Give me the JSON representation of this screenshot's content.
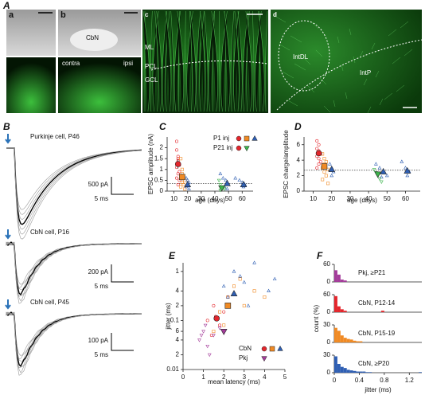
{
  "images": {
    "label": "A",
    "panels": [
      {
        "label": "a"
      },
      {
        "label": "b",
        "annotations": [
          "CbN",
          "contra",
          "ipsi"
        ]
      },
      {
        "label": "c",
        "annotations": [
          "ML",
          "PCL",
          "GCL"
        ]
      },
      {
        "label": "d",
        "annotations": [
          "IntDL",
          "IntP"
        ]
      }
    ]
  },
  "traces": {
    "label": "B",
    "cells": [
      {
        "title": "Purkinje cell, P46",
        "scale_y": "500 pA",
        "scale_x": "5 ms"
      },
      {
        "title": "CbN cell, P16",
        "scale_y": "200 pA",
        "scale_x": "5 ms"
      },
      {
        "title": "CbN cell, P45",
        "scale_y": "100 pA",
        "scale_x": "5 ms"
      }
    ]
  },
  "chart_data": [
    {
      "type": "scatter",
      "panel_label": "C",
      "xlabel": "age (days)",
      "ylabel": "EPSC amplitude (nA)",
      "xlim": [
        5,
        68
      ],
      "xticks": [
        10,
        20,
        30,
        40,
        50,
        60
      ],
      "ylim": [
        0,
        2.5
      ],
      "yticks": [
        0,
        0.5,
        1,
        1.5,
        2
      ],
      "hline": 0.35,
      "legend": [
        {
          "label": "P1 inj",
          "markers": [
            {
              "color": "#e4262c",
              "marker": "circle"
            },
            {
              "color": "#f08a24",
              "marker": "square"
            },
            {
              "color": "#2f5fb3",
              "marker": "triangle"
            }
          ]
        },
        {
          "label": "P21 inj",
          "markers": [
            {
              "color": "#e4262c",
              "marker": "circle"
            },
            {
              "color": "#3cb44b",
              "marker": "triangle-down"
            }
          ]
        }
      ],
      "series": [
        {
          "color": "#e4262c",
          "marker": "circle",
          "filled": false,
          "x": [
            12,
            12,
            13,
            13,
            13,
            14,
            12,
            14,
            13,
            12,
            14,
            13
          ],
          "values": [
            2.3,
            1.9,
            1.6,
            1.5,
            1.4,
            1.2,
            1.1,
            0.9,
            0.8,
            0.6,
            0.5,
            0.3
          ]
        },
        {
          "color": "#f08a24",
          "marker": "square",
          "filled": false,
          "x": [
            15,
            16,
            16,
            17,
            15,
            18,
            16,
            17,
            15,
            18
          ],
          "values": [
            1.5,
            1.0,
            0.8,
            0.7,
            0.6,
            0.5,
            0.4,
            0.3,
            0.2,
            0.1
          ]
        },
        {
          "color": "#2f5fb3",
          "marker": "triangle",
          "filled": false,
          "x": [
            19,
            20,
            21,
            20,
            19,
            21,
            44,
            46,
            48,
            50,
            47,
            49,
            55,
            58,
            60,
            62,
            61
          ],
          "values": [
            0.6,
            0.5,
            0.4,
            0.3,
            0.2,
            0.1,
            0.8,
            0.6,
            0.5,
            0.3,
            0.2,
            0.1,
            0.6,
            0.5,
            0.4,
            0.3,
            0.2
          ]
        },
        {
          "color": "#3cb44b",
          "marker": "triangle-down",
          "filled": false,
          "x": [
            43,
            44,
            45,
            46,
            47,
            44
          ],
          "values": [
            0.5,
            0.3,
            0.2,
            0.15,
            0.1,
            0.05
          ]
        },
        {
          "color": "#e4262c",
          "marker": "circle",
          "filled": true,
          "x": [
            13
          ],
          "values": [
            1.25
          ],
          "errors": [
            0.2
          ]
        },
        {
          "color": "#f08a24",
          "marker": "square",
          "filled": true,
          "x": [
            16
          ],
          "values": [
            0.65
          ],
          "errors": [
            0.15
          ]
        },
        {
          "color": "#2f5fb3",
          "marker": "triangle",
          "filled": true,
          "x": [
            20,
            49,
            61
          ],
          "values": [
            0.3,
            0.35,
            0.3
          ],
          "errors": [
            0.05,
            0.08,
            0.06
          ]
        },
        {
          "color": "#3cb44b",
          "marker": "triangle-down",
          "filled": true,
          "x": [
            45
          ],
          "values": [
            0.15
          ],
          "errors": [
            0.04
          ]
        }
      ]
    },
    {
      "type": "scatter",
      "panel_label": "D",
      "xlabel": "age (days)",
      "ylabel": "EPSC charge/amplitude",
      "xlim": [
        5,
        68
      ],
      "xticks": [
        10,
        20,
        30,
        40,
        50,
        60
      ],
      "ylim": [
        0,
        7
      ],
      "yticks": [
        0,
        2,
        4,
        6
      ],
      "hline": 2.7,
      "series": [
        {
          "color": "#e4262c",
          "marker": "circle",
          "filled": false,
          "x": [
            12,
            13,
            12,
            13,
            14,
            12,
            13,
            14,
            13,
            12
          ],
          "values": [
            6.5,
            6.0,
            5.5,
            5.2,
            4.8,
            4.5,
            4.2,
            3.8,
            3.5,
            3.0
          ]
        },
        {
          "color": "#f08a24",
          "marker": "square",
          "filled": false,
          "x": [
            15,
            16,
            17,
            16,
            15,
            18,
            16,
            17,
            15,
            18
          ],
          "values": [
            4.8,
            4.2,
            3.8,
            3.5,
            3.0,
            2.8,
            2.5,
            2.0,
            1.5,
            1.0
          ]
        },
        {
          "color": "#2f5fb3",
          "marker": "triangle",
          "filled": false,
          "x": [
            19,
            20,
            21,
            20,
            44,
            46,
            48,
            50,
            47,
            58,
            60,
            62,
            61
          ],
          "values": [
            3.5,
            3.0,
            2.5,
            2.0,
            3.5,
            3.0,
            2.5,
            2.0,
            1.8,
            3.8,
            3.0,
            2.5,
            2.0
          ]
        },
        {
          "color": "#3cb44b",
          "marker": "triangle-down",
          "filled": false,
          "x": [
            43,
            44,
            45,
            46,
            47
          ],
          "values": [
            2.8,
            2.4,
            2.0,
            1.6,
            1.2
          ]
        },
        {
          "color": "#e4262c",
          "marker": "circle",
          "filled": true,
          "x": [
            13
          ],
          "values": [
            4.9
          ],
          "errors": [
            0.3
          ]
        },
        {
          "color": "#f08a24",
          "marker": "square",
          "filled": true,
          "x": [
            16
          ],
          "values": [
            3.2
          ],
          "errors": [
            0.3
          ]
        },
        {
          "color": "#2f5fb3",
          "marker": "triangle",
          "filled": true,
          "x": [
            20,
            48,
            61
          ],
          "values": [
            2.8,
            2.5,
            2.6
          ],
          "errors": [
            0.2,
            0.25,
            0.25
          ]
        },
        {
          "color": "#3cb44b",
          "marker": "triangle-down",
          "filled": true,
          "x": [
            45
          ],
          "values": [
            2.2
          ],
          "errors": [
            0.2
          ]
        }
      ]
    },
    {
      "type": "scatter",
      "panel_label": "E",
      "xlabel": "mean latency (ms)",
      "ylabel": "jitter (ms)",
      "log_y": true,
      "xlim": [
        0,
        5
      ],
      "xticks": [
        0,
        1,
        2,
        3,
        4,
        5
      ],
      "ylim": [
        0.01,
        1.5
      ],
      "yticks": [
        0.01,
        {
          "value": 0.02,
          "label": "2"
        },
        {
          "value": 0.04,
          "label": "4"
        },
        {
          "value": 0.06,
          "label": "6"
        },
        0.1,
        {
          "value": 0.2,
          "label": "2"
        },
        {
          "value": 0.4,
          "label": "4"
        },
        1
      ],
      "legend": [
        {
          "label": "CbN",
          "markers": [
            {
              "color": "#e4262c",
              "marker": "circle"
            },
            {
              "color": "#f08a24",
              "marker": "square"
            },
            {
              "color": "#2f5fb3",
              "marker": "triangle"
            }
          ]
        },
        {
          "label": "Pkj",
          "markers": [
            {
              "color": "#a43c9a",
              "marker": "triangle-down"
            }
          ]
        }
      ],
      "series": [
        {
          "color": "#e4262c",
          "marker": "circle",
          "filled": false,
          "x": [
            1.2,
            1.5,
            1.8,
            2.0,
            1.4,
            2.2,
            1.6
          ],
          "values": [
            0.1,
            0.2,
            0.08,
            0.15,
            0.05,
            0.3,
            0.12
          ]
        },
        {
          "color": "#f08a24",
          "marker": "square",
          "filled": false,
          "x": [
            1.8,
            2.2,
            2.5,
            3.0,
            2.0,
            2.8,
            3.5,
            1.5,
            4.0
          ],
          "values": [
            0.15,
            0.3,
            0.5,
            0.2,
            0.08,
            0.7,
            0.4,
            0.06,
            0.3
          ]
        },
        {
          "color": "#2f5fb3",
          "marker": "triangle",
          "filled": false,
          "x": [
            2.0,
            2.5,
            3.0,
            3.5,
            2.2,
            2.8,
            4.2,
            3.2,
            4.5
          ],
          "values": [
            0.5,
            1.0,
            0.6,
            1.5,
            0.3,
            0.8,
            0.4,
            0.2,
            0.7
          ]
        },
        {
          "color": "#a43c9a",
          "marker": "triangle-down",
          "filled": false,
          "x": [
            0.8,
            1.0,
            1.2,
            1.5,
            1.1,
            1.3,
            0.9,
            1.8
          ],
          "values": [
            0.04,
            0.06,
            0.03,
            0.05,
            0.08,
            0.02,
            0.05,
            0.07
          ]
        },
        {
          "color": "#e4262c",
          "marker": "circle",
          "filled": true,
          "x": [
            1.65
          ],
          "values": [
            0.11
          ]
        },
        {
          "color": "#f08a24",
          "marker": "square",
          "filled": true,
          "x": [
            2.2
          ],
          "values": [
            0.2
          ]
        },
        {
          "color": "#2f5fb3",
          "marker": "triangle",
          "filled": true,
          "x": [
            2.5
          ],
          "values": [
            0.35
          ]
        },
        {
          "color": "#a43c9a",
          "marker": "triangle-down",
          "filled": true,
          "x": [
            2.0
          ],
          "values": [
            0.06
          ]
        }
      ]
    },
    {
      "type": "histogram",
      "panel_label": "F",
      "xlabel": "jitter (ms)",
      "ylabel": "count (%)",
      "xlim": [
        0,
        1.4
      ],
      "xticks": [
        0,
        0.4,
        0.8,
        1.2
      ],
      "bins": [
        0,
        0.05,
        0.1,
        0.15,
        0.2,
        0.25,
        0.3,
        0.35,
        0.4,
        0.45,
        0.5,
        0.55,
        0.6,
        0.65,
        0.7,
        0.75,
        0.8,
        0.85,
        0.9,
        0.95,
        1.0,
        1.05,
        1.1,
        1.15,
        1.2,
        1.25,
        1.3,
        1.35,
        1.4
      ],
      "panels": [
        {
          "title": "Pkj, ≥P21",
          "color": "#a43c9a",
          "ylim": [
            0,
            60
          ],
          "yticks": [
            0,
            60
          ],
          "values": [
            40,
            25,
            8,
            5,
            0,
            0,
            0,
            0,
            0,
            0,
            0,
            0,
            0,
            0,
            0,
            0,
            0,
            0,
            0,
            0,
            0,
            0,
            0,
            0,
            0,
            0,
            0,
            0
          ]
        },
        {
          "title": "CbN, P12-14",
          "color": "#e4262c",
          "ylim": [
            0,
            60
          ],
          "yticks": [
            0,
            60
          ],
          "values": [
            55,
            20,
            10,
            5,
            0,
            0,
            0,
            0,
            0,
            0,
            0,
            0,
            0,
            0,
            0,
            5,
            0,
            0,
            0,
            0,
            0,
            0,
            0,
            0,
            0,
            0,
            0,
            0
          ]
        },
        {
          "title": "CbN, P15-19",
          "color": "#f08a24",
          "ylim": [
            0,
            30
          ],
          "yticks": [
            0,
            30
          ],
          "values": [
            25,
            20,
            12,
            8,
            6,
            5,
            3,
            2,
            2,
            0,
            0,
            0,
            0,
            0,
            0,
            0,
            0,
            0,
            0,
            0,
            0,
            0,
            0,
            0,
            0,
            0,
            0,
            0
          ]
        },
        {
          "title": "CbN, ≥P20",
          "color": "#2f5fb3",
          "ylim": [
            0,
            30
          ],
          "yticks": [
            0,
            30
          ],
          "values": [
            28,
            15,
            10,
            8,
            5,
            4,
            3,
            2,
            2,
            2,
            1,
            1,
            0,
            0,
            0,
            0,
            0,
            0,
            0,
            0,
            0,
            0,
            0,
            0,
            0,
            0,
            0,
            1
          ]
        }
      ]
    }
  ]
}
